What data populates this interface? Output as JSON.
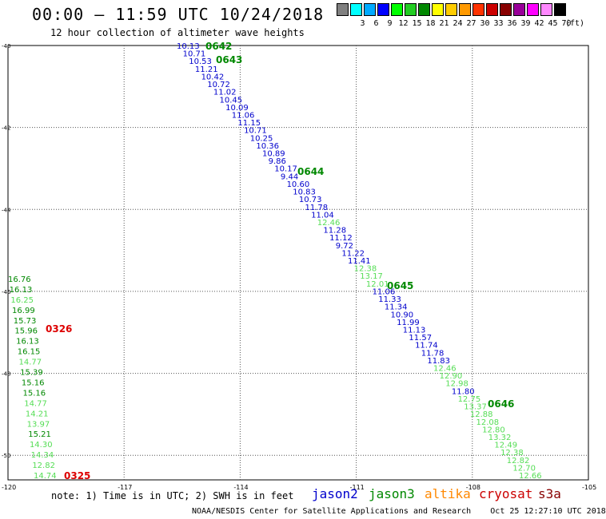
{
  "header": {
    "title": "00:00 — 11:59 UTC 10/24/2018",
    "subtitle": "12 hour collection of altimeter wave heights"
  },
  "legend": {
    "unit": "(ft)",
    "colors": [
      "#808080",
      "#00ffff",
      "#00aaff",
      "#0000ff",
      "#00ff00",
      "#22cc22",
      "#008800",
      "#ffff00",
      "#ffcc00",
      "#ff9900",
      "#ff3300",
      "#cc0000",
      "#880000",
      "#990099",
      "#ff00ff",
      "#ff88ff",
      "#000000"
    ],
    "labels": [
      "",
      "3",
      "6",
      "9",
      "12",
      "15",
      "18",
      "21",
      "24",
      "27",
      "30",
      "33",
      "36",
      "39",
      "42",
      "45",
      "70"
    ]
  },
  "axes": {
    "lat_labels": [
      "-40",
      "-42",
      "-44",
      "-46",
      "-48",
      "-50"
    ],
    "lon_labels": [
      "-120",
      "-117",
      "-114",
      "-111",
      "-108",
      "-105"
    ]
  },
  "satellites": {
    "jason2": {
      "label": "jason2",
      "color": "#0000cc"
    },
    "jason3": {
      "label": "jason3",
      "color": "#008800"
    },
    "altika": {
      "label": "altika",
      "color": "#ff8800"
    },
    "cryosat": {
      "label": "cryosat",
      "color": "#cc0000"
    },
    "s3a": {
      "label": "s3a",
      "color": "#880000"
    }
  },
  "colors": {
    "light_green": "#55dd55",
    "green": "#008800",
    "blue": "#0000cc",
    "red": "#dd0000"
  },
  "passes": [
    {
      "time": "0642",
      "color": "green"
    },
    {
      "time": "0643",
      "color": "green"
    },
    {
      "time": "0644",
      "color": "green"
    },
    {
      "time": "0645",
      "color": "green"
    },
    {
      "time": "0646",
      "color": "green"
    },
    {
      "time": "0326",
      "color": "red"
    },
    {
      "time": "0325",
      "color": "red"
    }
  ],
  "main_track": [
    {
      "v": "10.13",
      "c": "blue"
    },
    {
      "v": "10.71",
      "c": "blue"
    },
    {
      "v": "10.53",
      "c": "blue"
    },
    {
      "v": "11.21",
      "c": "blue"
    },
    {
      "v": "10.42",
      "c": "blue"
    },
    {
      "v": "10.72",
      "c": "blue"
    },
    {
      "v": "11.02",
      "c": "blue"
    },
    {
      "v": "10.45",
      "c": "blue"
    },
    {
      "v": "10.09",
      "c": "blue"
    },
    {
      "v": "11.06",
      "c": "blue"
    },
    {
      "v": "11.15",
      "c": "blue"
    },
    {
      "v": "10.71",
      "c": "blue"
    },
    {
      "v": "10.25",
      "c": "blue"
    },
    {
      "v": "10.36",
      "c": "blue"
    },
    {
      "v": "10.89",
      "c": "blue"
    },
    {
      "v": "9.86",
      "c": "blue"
    },
    {
      "v": "10.17",
      "c": "blue"
    },
    {
      "v": "9.44",
      "c": "blue"
    },
    {
      "v": "10.60",
      "c": "blue"
    },
    {
      "v": "10.83",
      "c": "blue"
    },
    {
      "v": "10.73",
      "c": "blue"
    },
    {
      "v": "11.78",
      "c": "blue"
    },
    {
      "v": "11.04",
      "c": "blue"
    },
    {
      "v": "12.46",
      "c": "light_green"
    },
    {
      "v": "11.28",
      "c": "blue"
    },
    {
      "v": "11.12",
      "c": "blue"
    },
    {
      "v": "9.72",
      "c": "blue"
    },
    {
      "v": "11.22",
      "c": "blue"
    },
    {
      "v": "11.41",
      "c": "blue"
    },
    {
      "v": "12.38",
      "c": "light_green"
    },
    {
      "v": "13.17",
      "c": "light_green"
    },
    {
      "v": "12.01",
      "c": "light_green"
    },
    {
      "v": "11.06",
      "c": "blue"
    },
    {
      "v": "11.33",
      "c": "blue"
    },
    {
      "v": "11.34",
      "c": "blue"
    },
    {
      "v": "10.90",
      "c": "blue"
    },
    {
      "v": "11.99",
      "c": "blue"
    },
    {
      "v": "11.13",
      "c": "blue"
    },
    {
      "v": "11.57",
      "c": "blue"
    },
    {
      "v": "11.74",
      "c": "blue"
    },
    {
      "v": "11.78",
      "c": "blue"
    },
    {
      "v": "11.83",
      "c": "blue"
    },
    {
      "v": "12.46",
      "c": "light_green"
    },
    {
      "v": "12.90",
      "c": "light_green"
    },
    {
      "v": "12.98",
      "c": "light_green"
    },
    {
      "v": "11.80",
      "c": "blue"
    },
    {
      "v": "12.75",
      "c": "light_green"
    },
    {
      "v": "13.37",
      "c": "light_green"
    },
    {
      "v": "12.88",
      "c": "light_green"
    },
    {
      "v": "12.08",
      "c": "light_green"
    },
    {
      "v": "12.80",
      "c": "light_green"
    },
    {
      "v": "13.32",
      "c": "light_green"
    },
    {
      "v": "12.49",
      "c": "light_green"
    },
    {
      "v": "12.38",
      "c": "light_green"
    },
    {
      "v": "12.82",
      "c": "light_green"
    },
    {
      "v": "12.70",
      "c": "light_green"
    },
    {
      "v": "12.66",
      "c": "light_green"
    }
  ],
  "west_track": [
    {
      "v": "16.76",
      "c": "green"
    },
    {
      "v": "16.13",
      "c": "green"
    },
    {
      "v": "16.25",
      "c": "light_green"
    },
    {
      "v": "16.99",
      "c": "green"
    },
    {
      "v": "15.73",
      "c": "green"
    },
    {
      "v": "15.96",
      "c": "green"
    },
    {
      "v": "16.13",
      "c": "green"
    },
    {
      "v": "16.15",
      "c": "green"
    },
    {
      "v": "14.77",
      "c": "light_green"
    },
    {
      "v": "15.39",
      "c": "green"
    },
    {
      "v": "15.16",
      "c": "green"
    },
    {
      "v": "15.16",
      "c": "green"
    },
    {
      "v": "14.77",
      "c": "light_green"
    },
    {
      "v": "14.21",
      "c": "light_green"
    },
    {
      "v": "13.97",
      "c": "light_green"
    },
    {
      "v": "15.21",
      "c": "green"
    },
    {
      "v": "14.30",
      "c": "light_green"
    },
    {
      "v": "14.34",
      "c": "light_green"
    },
    {
      "v": "12.82",
      "c": "light_green"
    },
    {
      "v": "14.74",
      "c": "light_green"
    }
  ],
  "footer": {
    "note": "note: 1) Time is in UTC; 2) SWH is in feet",
    "credit": "NOAA/NESDIS Center for Satellite Applications and Research    Oct 25 12:27:10 UTC 2018"
  }
}
